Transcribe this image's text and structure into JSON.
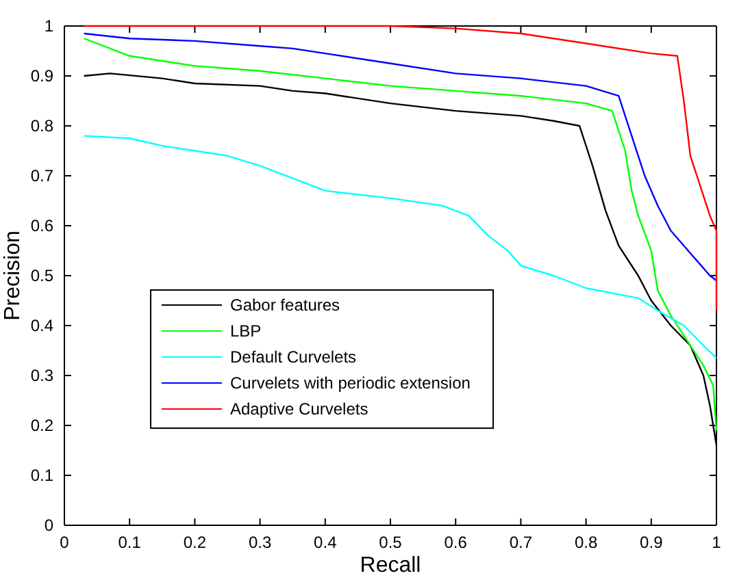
{
  "chart_data": {
    "type": "line",
    "xlabel": "Recall",
    "ylabel": "Precision",
    "xlim": [
      0,
      1
    ],
    "ylim": [
      0,
      1
    ],
    "xticks": [
      0,
      0.1,
      0.2,
      0.3,
      0.4,
      0.5,
      0.6,
      0.7,
      0.8,
      0.9,
      1
    ],
    "yticks": [
      0,
      0.1,
      0.2,
      0.3,
      0.4,
      0.5,
      0.6,
      0.7,
      0.8,
      0.9,
      1
    ],
    "grid": false,
    "legend": "left",
    "marker": "none",
    "line_style": "solid",
    "series": [
      {
        "name": "Gabor features",
        "color": "#000000",
        "x": [
          0.03,
          0.07,
          0.15,
          0.2,
          0.3,
          0.35,
          0.4,
          0.5,
          0.6,
          0.7,
          0.75,
          0.79,
          0.81,
          0.83,
          0.85,
          0.88,
          0.9,
          0.93,
          0.96,
          0.98,
          0.99,
          1.0
        ],
        "values": [
          0.9,
          0.905,
          0.895,
          0.885,
          0.88,
          0.87,
          0.865,
          0.845,
          0.83,
          0.82,
          0.81,
          0.8,
          0.72,
          0.63,
          0.56,
          0.5,
          0.45,
          0.4,
          0.36,
          0.3,
          0.24,
          0.16
        ]
      },
      {
        "name": "LBP",
        "color": "#00ff00",
        "x": [
          0.03,
          0.1,
          0.2,
          0.3,
          0.4,
          0.5,
          0.6,
          0.7,
          0.8,
          0.84,
          0.86,
          0.87,
          0.88,
          0.9,
          0.91,
          0.93,
          0.96,
          0.98,
          0.995,
          1.0
        ],
        "values": [
          0.975,
          0.94,
          0.92,
          0.91,
          0.895,
          0.88,
          0.87,
          0.86,
          0.845,
          0.83,
          0.75,
          0.67,
          0.62,
          0.55,
          0.47,
          0.42,
          0.36,
          0.32,
          0.28,
          0.19
        ]
      },
      {
        "name": "Default Curvelets",
        "color": "#00ffff",
        "x": [
          0.03,
          0.1,
          0.15,
          0.25,
          0.3,
          0.4,
          0.5,
          0.58,
          0.62,
          0.65,
          0.68,
          0.7,
          0.75,
          0.8,
          0.88,
          0.91,
          0.95,
          0.98,
          1.0
        ],
        "values": [
          0.78,
          0.775,
          0.76,
          0.74,
          0.72,
          0.67,
          0.655,
          0.64,
          0.62,
          0.58,
          0.55,
          0.52,
          0.5,
          0.475,
          0.455,
          0.43,
          0.4,
          0.36,
          0.335
        ]
      },
      {
        "name": "Curvelets with periodic extension",
        "color": "#0000ff",
        "x": [
          0.03,
          0.1,
          0.2,
          0.3,
          0.35,
          0.4,
          0.5,
          0.6,
          0.7,
          0.8,
          0.85,
          0.87,
          0.89,
          0.91,
          0.93,
          0.95,
          0.97,
          0.99,
          1.0
        ],
        "values": [
          0.985,
          0.975,
          0.97,
          0.96,
          0.955,
          0.945,
          0.925,
          0.905,
          0.895,
          0.88,
          0.86,
          0.78,
          0.7,
          0.64,
          0.59,
          0.56,
          0.53,
          0.5,
          0.49
        ]
      },
      {
        "name": "Adaptive Curvelets",
        "color": "#ff0000",
        "x": [
          0.03,
          0.5,
          0.6,
          0.7,
          0.8,
          0.9,
          0.94,
          0.95,
          0.96,
          0.97,
          0.98,
          0.99,
          1.0,
          1.0
        ],
        "values": [
          1.0,
          1.0,
          0.995,
          0.985,
          0.965,
          0.945,
          0.94,
          0.85,
          0.74,
          0.7,
          0.66,
          0.62,
          0.59,
          0.43
        ]
      }
    ]
  }
}
